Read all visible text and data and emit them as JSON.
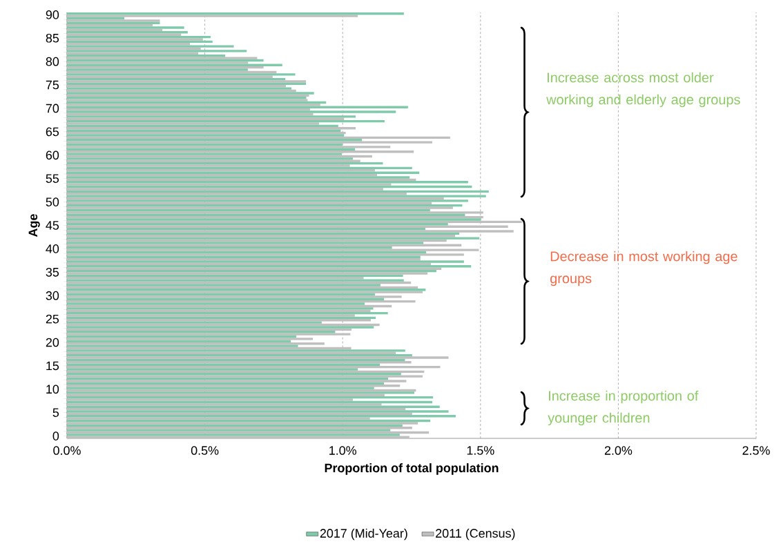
{
  "chart_data": {
    "type": "bar",
    "orientation": "horizontal",
    "xlabel": "Proportion of total population",
    "ylabel": "Age",
    "categories": [
      "90",
      null,
      null,
      null,
      null,
      "85",
      null,
      null,
      null,
      null,
      "80",
      null,
      null,
      null,
      null,
      "75",
      null,
      null,
      null,
      null,
      "70",
      null,
      null,
      null,
      null,
      "65",
      null,
      null,
      null,
      null,
      "60",
      null,
      null,
      null,
      null,
      "55",
      null,
      null,
      null,
      null,
      "50",
      null,
      null,
      null,
      null,
      "45",
      null,
      null,
      null,
      null,
      "40",
      null,
      null,
      null,
      null,
      "35",
      null,
      null,
      null,
      null,
      "30",
      null,
      null,
      null,
      null,
      "25",
      null,
      null,
      null,
      null,
      "20",
      null,
      null,
      null,
      null,
      "15",
      null,
      null,
      null,
      null,
      "10",
      null,
      null,
      null,
      null,
      "5",
      null,
      null,
      null,
      null,
      "0"
    ],
    "series": [
      {
        "name": "2017 (Mid-Year)",
        "color": "#80c9aa",
        "values": [
          1.222,
          0.208,
          0.337,
          0.425,
          0.438,
          0.521,
          0.528,
          0.605,
          0.652,
          0.574,
          0.713,
          0.781,
          0.656,
          0.828,
          0.792,
          0.867,
          0.814,
          0.896,
          0.868,
          0.94,
          1.237,
          1.193,
          1.047,
          1.152,
          0.984,
          0.993,
          1.005,
          1.07,
          0.999,
          1.045,
          0.997,
          1.037,
          1.146,
          1.252,
          1.278,
          1.243,
          1.455,
          1.469,
          1.53,
          1.52,
          1.455,
          1.434,
          1.317,
          1.444,
          1.502,
          1.382,
          1.3,
          1.423,
          1.496,
          1.293,
          1.179,
          1.303,
          1.282,
          1.44,
          1.466,
          1.34,
          1.219,
          1.222,
          1.137,
          1.301,
          1.117,
          1.15,
          1.08,
          1.111,
          1.164,
          1.12,
          0.924,
          1.113,
          0.973,
          0.832,
          0.812,
          0.838,
          1.227,
          1.252,
          1.226,
          1.135,
          1.055,
          1.212,
          1.165,
          1.15,
          1.114,
          1.26,
          1.328,
          1.325,
          1.352,
          1.384,
          1.41,
          1.318,
          1.217,
          1.173,
          1.207
        ]
      },
      {
        "name": "2011 (Census)",
        "color": "#bfbfbf",
        "values": [
          1.055,
          0.337,
          0.311,
          0.346,
          0.414,
          0.493,
          0.446,
          0.485,
          0.476,
          0.69,
          0.657,
          0.713,
          0.76,
          0.746,
          0.867,
          0.794,
          0.831,
          0.878,
          0.873,
          0.919,
          0.882,
          0.893,
          1.005,
          0.914,
          1.047,
          1.011,
          1.39,
          1.325,
          1.173,
          1.258,
          1.107,
          1.064,
          1.026,
          1.117,
          1.125,
          1.266,
          1.176,
          1.147,
          1.232,
          1.367,
          1.323,
          1.4,
          1.51,
          1.51,
          1.65,
          1.6,
          1.62,
          1.408,
          1.377,
          1.431,
          1.494,
          1.44,
          1.282,
          1.32,
          1.358,
          1.308,
          1.076,
          1.248,
          1.273,
          1.29,
          1.214,
          1.264,
          1.178,
          1.101,
          1.044,
          1.102,
          1.134,
          1.032,
          1.028,
          0.892,
          0.934,
          1.031,
          1.193,
          1.384,
          1.249,
          1.354,
          1.296,
          1.29,
          1.231,
          1.208,
          1.266,
          1.152,
          1.037,
          1.141,
          1.228,
          1.252,
          1.099,
          1.273,
          1.252,
          1.313,
          1.242
        ]
      }
    ],
    "xlim": [
      0,
      2.5
    ],
    "xticks": [
      {
        "value": 0,
        "label": "0.0%"
      },
      {
        "value": 0.5,
        "label": "0.5%"
      },
      {
        "value": 1.0,
        "label": "1.0%"
      },
      {
        "value": 1.5,
        "label": "1.5%"
      },
      {
        "value": 2.0,
        "label": "2.0%"
      },
      {
        "value": 2.5,
        "label": "2.5%"
      }
    ],
    "grid": "x",
    "legend": "bottom",
    "annotations": [
      "Increase across most older working and elderly age groups",
      "Decrease in most working age groups",
      "Increase in proportion of younger children"
    ]
  }
}
